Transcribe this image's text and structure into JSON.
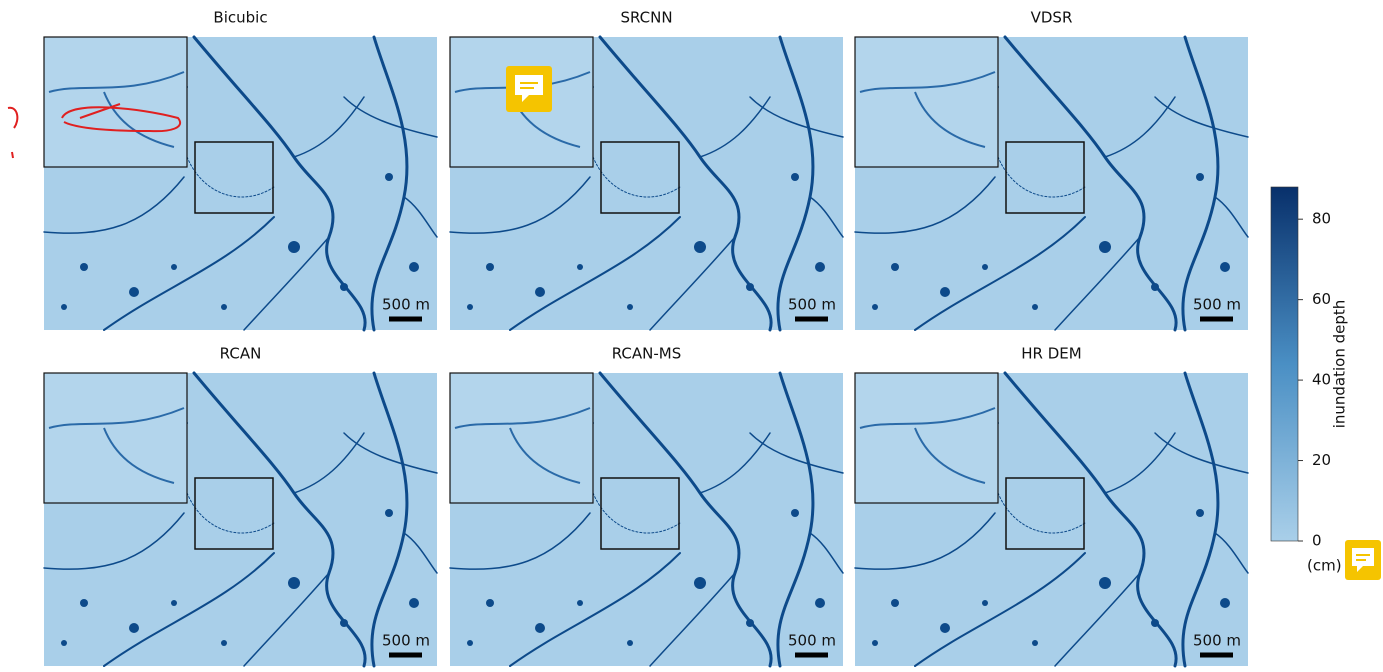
{
  "panels": [
    {
      "title": "Bicubic",
      "scale_label": "500 m"
    },
    {
      "title": "SRCNN",
      "scale_label": "500 m"
    },
    {
      "title": "VDSR",
      "scale_label": "500 m"
    },
    {
      "title": "RCAN",
      "scale_label": "500 m"
    },
    {
      "title": "RCAN-MS",
      "scale_label": "500 m"
    },
    {
      "title": "HR DEM",
      "scale_label": "500 m"
    }
  ],
  "colorbar": {
    "label": "inundation depth",
    "unit": "(cm)",
    "lim": [
      0,
      88
    ],
    "ticks": [
      0,
      20,
      40,
      60,
      80
    ]
  }
}
